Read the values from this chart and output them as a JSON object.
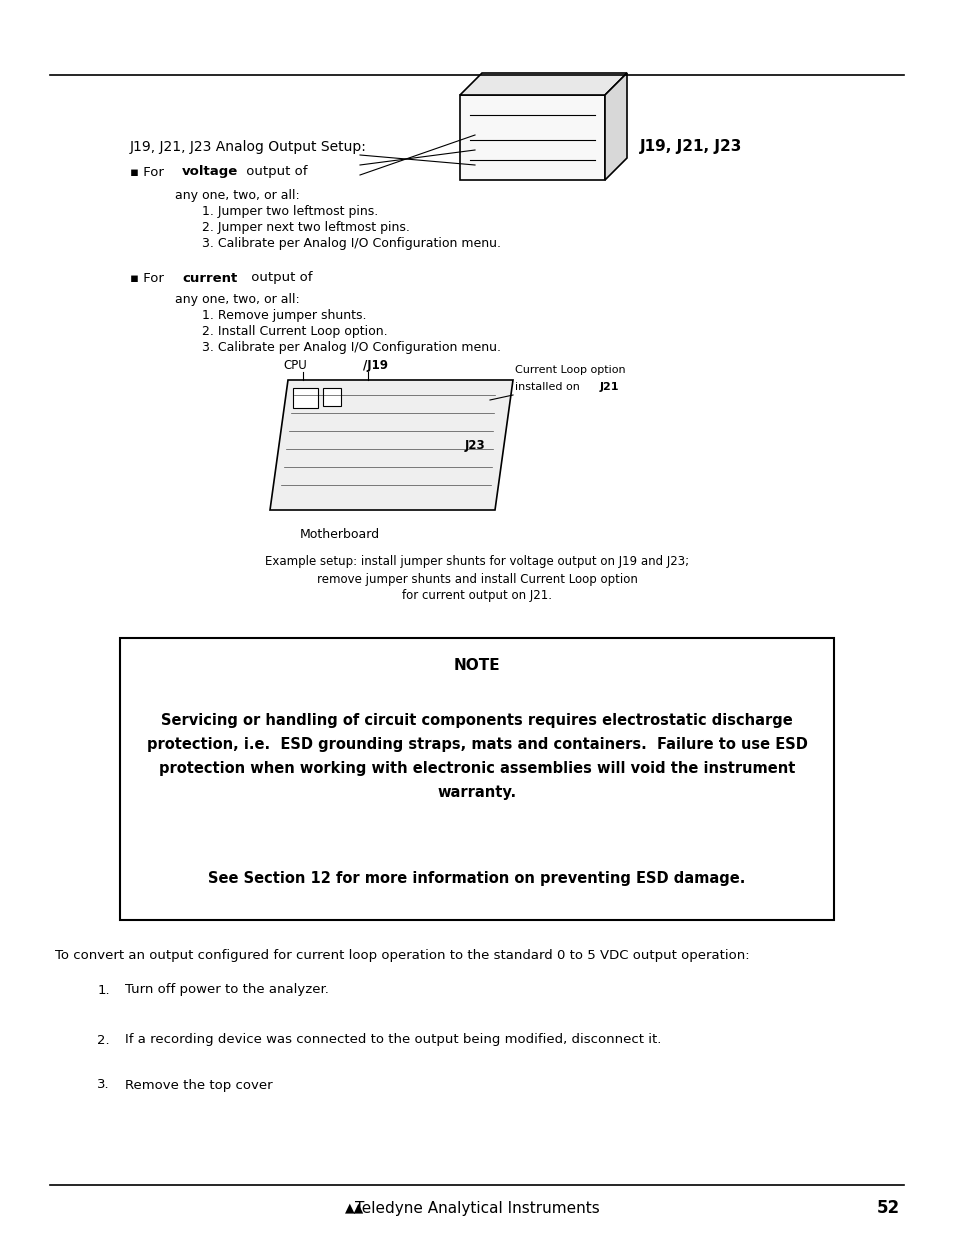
{
  "bg_color": "#ffffff",
  "page_number": "52",
  "footer_text": "Teledyne Analytical Instruments",
  "section_title": "J19, J21, J23 Analog Output Setup:",
  "label_j19j21j23": "J19, J21, J23",
  "voltage_lines": [
    "any one, two, or all:",
    "1. Jumper two leftmost pins.",
    "2. Jumper next two leftmost pins.",
    "3. Calibrate per Analog I/O Configuration menu."
  ],
  "current_lines": [
    "any one, two, or all:",
    "1. Remove jumper shunts.",
    "2. Install Current Loop option.",
    "3. Calibrate per Analog I/O Configuration menu."
  ],
  "caption_lines": [
    "Example setup: install jumper shunts for voltage output on J19 and J23;",
    "remove jumper shunts and install Current Loop option",
    "for current output on J21."
  ],
  "note_title": "NOTE",
  "note_body_lines": [
    "Servicing or handling of circuit components requires electrostatic discharge",
    "protection, i.e.  ESD grounding straps, mats and containers.  Failure to use ESD",
    "protection when working with electronic assemblies will void the instrument",
    "warranty."
  ],
  "note_see": "See Section 12 for more information on preventing ESD damage.",
  "body_text1": "To convert an output configured for current loop operation to the standard 0 to 5 VDC output operation:",
  "body_items": [
    [
      "1.",
      "Turn off power to the analyzer."
    ],
    [
      "2.",
      "If a recording device was connected to the output being modified, disconnect it."
    ],
    [
      "3.",
      "Remove the top cover"
    ]
  ]
}
